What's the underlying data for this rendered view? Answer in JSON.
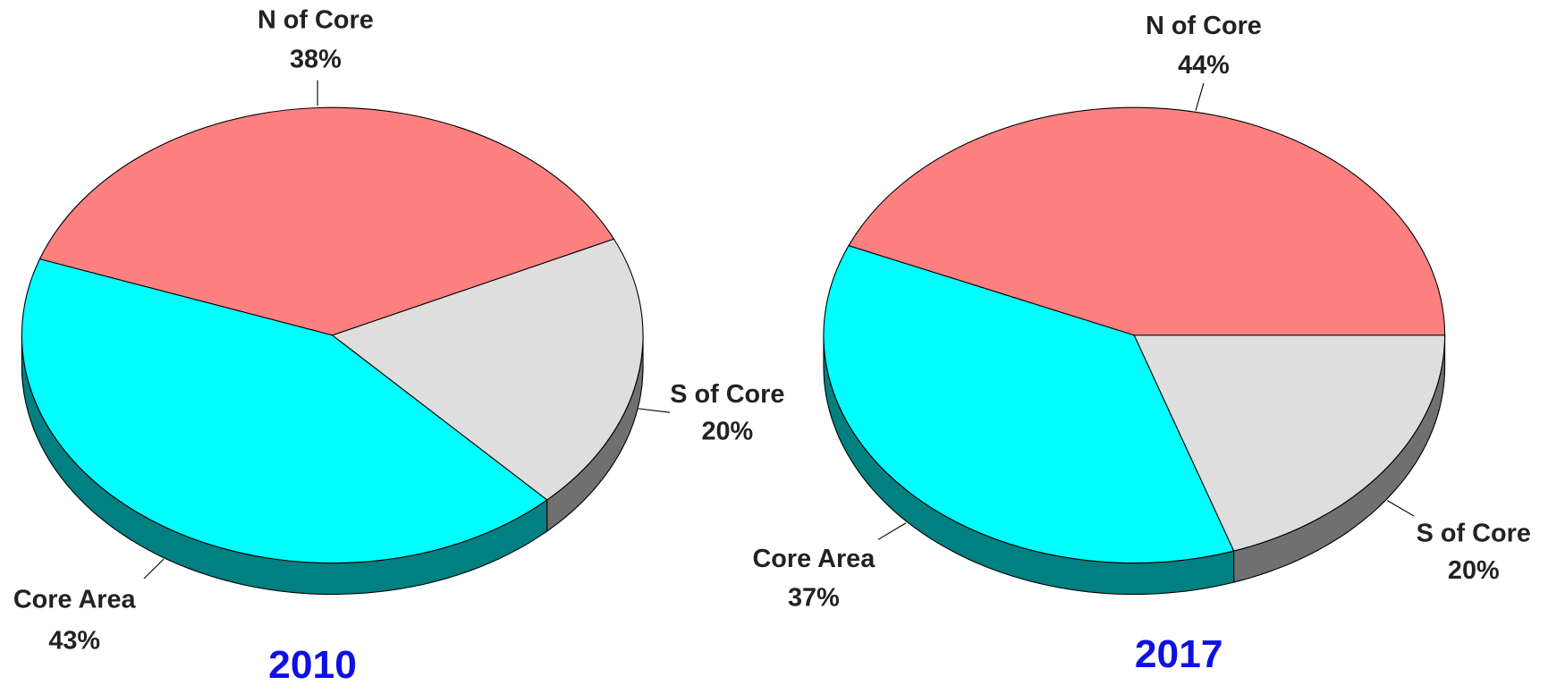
{
  "chart_data": [
    {
      "type": "pie",
      "title": "2010",
      "categories": [
        "N of Core",
        "Core Area",
        "S of Core"
      ],
      "values": [
        38,
        43,
        20
      ],
      "value_labels": [
        "38%",
        "43%",
        "20%"
      ],
      "colors": [
        "#ff8080",
        "#00ffff",
        "#dedede"
      ]
    },
    {
      "type": "pie",
      "title": "2017",
      "categories": [
        "N of Core",
        "Core Area",
        "S of Core"
      ],
      "values": [
        44,
        37,
        20
      ],
      "value_labels": [
        "44%",
        "37%",
        "20%"
      ],
      "colors": [
        "#ff8080",
        "#00ffff",
        "#dedede"
      ]
    }
  ]
}
